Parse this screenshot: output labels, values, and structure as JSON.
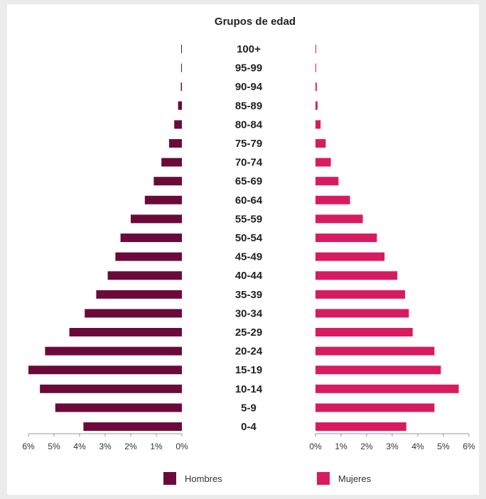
{
  "chart_data": {
    "type": "bar",
    "orientation": "horizontal-pyramid",
    "title": "Grupos de edad",
    "categories": [
      "100+",
      "95-99",
      "90-94",
      "85-89",
      "80-84",
      "75-79",
      "70-74",
      "65-69",
      "60-64",
      "55-59",
      "50-54",
      "45-49",
      "40-44",
      "35-39",
      "30-34",
      "25-29",
      "20-24",
      "15-19",
      "10-14",
      "5-9",
      "0-4"
    ],
    "series": [
      {
        "name": "Hombres",
        "color": "#6b0a3a",
        "values": [
          0.02,
          0.02,
          0.04,
          0.15,
          0.3,
          0.5,
          0.8,
          1.1,
          1.45,
          2.0,
          2.4,
          2.6,
          2.9,
          3.35,
          3.8,
          4.4,
          5.35,
          6.0,
          5.55,
          4.95,
          3.85
        ]
      },
      {
        "name": "Mujeres",
        "color": "#d81b60",
        "values": [
          0.02,
          0.01,
          0.05,
          0.08,
          0.2,
          0.4,
          0.6,
          0.9,
          1.35,
          1.85,
          2.4,
          2.7,
          3.2,
          3.5,
          3.65,
          3.8,
          4.65,
          4.9,
          5.6,
          4.65,
          3.55
        ]
      }
    ],
    "xlim": [
      0,
      6
    ],
    "xticks": [
      "0%",
      "1%",
      "2%",
      "3%",
      "4%",
      "5%",
      "6%"
    ],
    "left_xticks": [
      "6%",
      "5%",
      "4%",
      "3%",
      "2%",
      "1%",
      "0%"
    ],
    "legend_position": "bottom"
  }
}
